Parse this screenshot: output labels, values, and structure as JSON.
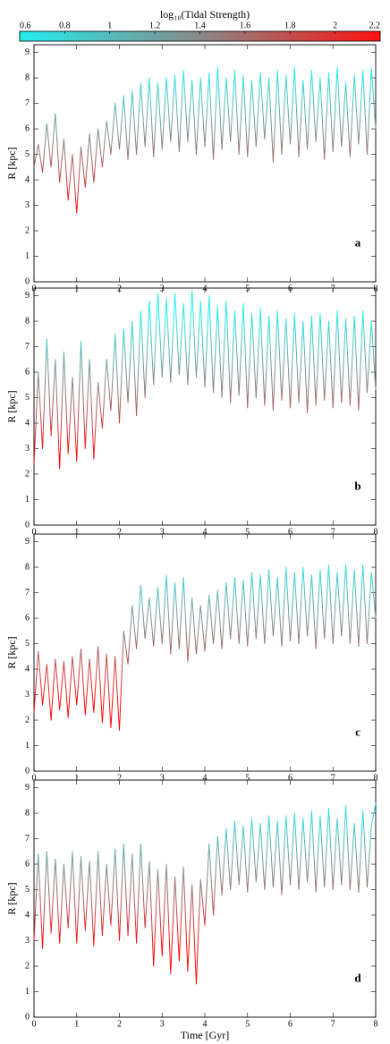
{
  "colorbar": {
    "label": "log₁₀(Tidal Strength)",
    "lim": [
      0.6,
      2.2
    ],
    "ticks": [
      0.6,
      0.8,
      1,
      1.2,
      1.4,
      1.6,
      1.8,
      2,
      2.2
    ],
    "colors": [
      "#22eeee",
      "#888888",
      "#ff1111"
    ]
  },
  "chart_data": [
    {
      "type": "line",
      "annotation": "a",
      "ylabel": "R [kpc]",
      "ylim": [
        0,
        9.3
      ],
      "yticks": [
        0,
        1,
        2,
        3,
        4,
        5,
        6,
        7,
        8,
        9
      ],
      "xlim": [
        0,
        8
      ],
      "xticks": [
        0,
        1,
        2,
        3,
        4,
        5,
        6,
        7,
        8
      ],
      "x": [
        0,
        0.1,
        0.2,
        0.3,
        0.4,
        0.5,
        0.6,
        0.7,
        0.8,
        0.9,
        1,
        1.1,
        1.2,
        1.3,
        1.4,
        1.5,
        1.6,
        1.7,
        1.8,
        1.9,
        2,
        2.1,
        2.2,
        2.3,
        2.4,
        2.5,
        2.6,
        2.7,
        2.8,
        2.9,
        3,
        3.1,
        3.2,
        3.3,
        3.4,
        3.5,
        3.6,
        3.7,
        3.8,
        3.9,
        4,
        4.1,
        4.2,
        4.3,
        4.4,
        4.5,
        4.6,
        4.7,
        4.8,
        4.9,
        5,
        5.1,
        5.2,
        5.3,
        5.4,
        5.5,
        5.6,
        5.7,
        5.8,
        5.9,
        6,
        6.1,
        6.2,
        6.3,
        6.4,
        6.5,
        6.6,
        6.7,
        6.8,
        6.9,
        7,
        7.1,
        7.2,
        7.3,
        7.4,
        7.5,
        7.6,
        7.7,
        7.8,
        7.9,
        8
      ],
      "values": [
        4.5,
        5.4,
        4.3,
        6.2,
        4.5,
        6.6,
        3.9,
        5.6,
        3.2,
        5.0,
        2.7,
        5.3,
        3.7,
        5.8,
        3.9,
        6.0,
        4.5,
        6.3,
        5.0,
        7.0,
        5.2,
        7.3,
        4.8,
        7.5,
        5.0,
        7.8,
        5.3,
        8.0,
        4.9,
        7.8,
        5.2,
        8.0,
        5.5,
        8.1,
        5.1,
        8.3,
        5.5,
        7.9,
        5.0,
        8.0,
        5.3,
        8.2,
        4.8,
        8.4,
        5.2,
        8.0,
        5.5,
        8.3,
        5.0,
        8.1,
        4.9,
        7.9,
        5.3,
        8.2,
        5.6,
        8.0,
        4.7,
        8.3,
        5.0,
        8.1,
        5.4,
        8.4,
        4.9,
        7.9,
        5.2,
        8.3,
        5.5,
        8.0,
        4.8,
        8.2,
        5.1,
        8.4,
        5.3,
        7.8,
        4.9,
        8.1,
        5.4,
        8.3,
        5.0,
        8.4,
        6.0
      ]
    },
    {
      "type": "line",
      "annotation": "b",
      "ylabel": "R [kpc]",
      "ylim": [
        0,
        9.3
      ],
      "yticks": [
        0,
        1,
        2,
        3,
        4,
        5,
        6,
        7,
        8,
        9
      ],
      "xlim": [
        0,
        8
      ],
      "xticks": [
        0,
        1,
        2,
        3,
        4,
        5,
        6,
        7,
        8
      ],
      "x": [
        0,
        0.1,
        0.2,
        0.3,
        0.4,
        0.5,
        0.6,
        0.7,
        0.8,
        0.9,
        1,
        1.1,
        1.2,
        1.3,
        1.4,
        1.5,
        1.6,
        1.7,
        1.8,
        1.9,
        2,
        2.1,
        2.2,
        2.3,
        2.4,
        2.5,
        2.6,
        2.7,
        2.8,
        2.9,
        3,
        3.1,
        3.2,
        3.3,
        3.4,
        3.5,
        3.6,
        3.7,
        3.8,
        3.9,
        4,
        4.1,
        4.2,
        4.3,
        4.4,
        4.5,
        4.6,
        4.7,
        4.8,
        4.9,
        5,
        5.1,
        5.2,
        5.3,
        5.4,
        5.5,
        5.6,
        5.7,
        5.8,
        5.9,
        6,
        6.1,
        6.2,
        6.3,
        6.4,
        6.5,
        6.6,
        6.7,
        6.8,
        6.9,
        7,
        7.1,
        7.2,
        7.3,
        7.4,
        7.5,
        7.6,
        7.7,
        7.8,
        7.9,
        8
      ],
      "values": [
        2.4,
        6.0,
        3.0,
        7.3,
        3.5,
        6.5,
        2.2,
        6.8,
        2.8,
        5.8,
        2.5,
        7.2,
        3.0,
        6.5,
        2.6,
        5.6,
        3.8,
        6.5,
        4.5,
        7.5,
        4.0,
        7.7,
        4.8,
        8.0,
        4.3,
        8.4,
        5.0,
        8.8,
        5.5,
        9.1,
        5.8,
        8.9,
        5.6,
        9.1,
        5.9,
        8.7,
        5.5,
        9.2,
        5.8,
        8.8,
        5.4,
        9.0,
        5.2,
        8.6,
        5.0,
        8.8,
        4.8,
        8.4,
        5.1,
        8.7,
        4.6,
        8.3,
        5.0,
        8.5,
        4.7,
        8.2,
        4.5,
        8.4,
        4.9,
        8.1,
        4.6,
        8.3,
        4.8,
        8.0,
        4.4,
        8.2,
        4.7,
        8.3,
        4.9,
        8.0,
        4.6,
        8.4,
        4.8,
        8.1,
        4.7,
        8.2,
        4.5,
        8.4,
        5.2,
        8.0,
        5.3
      ]
    },
    {
      "type": "line",
      "annotation": "c",
      "ylabel": "R [kpc]",
      "ylim": [
        0,
        9.3
      ],
      "yticks": [
        0,
        1,
        2,
        3,
        4,
        5,
        6,
        7,
        8,
        9
      ],
      "xlim": [
        0,
        8
      ],
      "xticks": [
        0,
        1,
        2,
        3,
        4,
        5,
        6,
        7,
        8
      ],
      "x": [
        0,
        0.1,
        0.2,
        0.3,
        0.4,
        0.5,
        0.6,
        0.7,
        0.8,
        0.9,
        1,
        1.1,
        1.2,
        1.3,
        1.4,
        1.5,
        1.6,
        1.7,
        1.8,
        1.9,
        2,
        2.1,
        2.2,
        2.3,
        2.4,
        2.5,
        2.6,
        2.7,
        2.8,
        2.9,
        3,
        3.1,
        3.2,
        3.3,
        3.4,
        3.5,
        3.6,
        3.7,
        3.8,
        3.9,
        4,
        4.1,
        4.2,
        4.3,
        4.4,
        4.5,
        4.6,
        4.7,
        4.8,
        4.9,
        5,
        5.1,
        5.2,
        5.3,
        5.4,
        5.5,
        5.6,
        5.7,
        5.8,
        5.9,
        6,
        6.1,
        6.2,
        6.3,
        6.4,
        6.5,
        6.6,
        6.7,
        6.8,
        6.9,
        7,
        7.1,
        7.2,
        7.3,
        7.4,
        7.5,
        7.6,
        7.7,
        7.8,
        7.9,
        8
      ],
      "values": [
        2.3,
        4.7,
        2.6,
        4.2,
        2.0,
        4.4,
        2.4,
        4.3,
        2.1,
        4.5,
        2.6,
        4.8,
        2.2,
        4.4,
        2.3,
        4.9,
        1.9,
        4.6,
        1.7,
        4.5,
        1.6,
        5.5,
        4.2,
        6.5,
        4.8,
        7.3,
        5.2,
        6.8,
        4.9,
        7.2,
        5.0,
        7.7,
        4.6,
        7.4,
        4.8,
        7.6,
        4.3,
        6.8,
        4.6,
        6.5,
        4.7,
        6.9,
        5.0,
        7.1,
        4.8,
        7.4,
        5.2,
        7.6,
        5.0,
        7.5,
        4.9,
        7.8,
        5.2,
        7.7,
        5.0,
        7.9,
        5.3,
        7.6,
        4.9,
        8.0,
        5.1,
        7.8,
        5.0,
        8.0,
        5.3,
        7.7,
        4.8,
        7.9,
        5.2,
        8.1,
        5.0,
        7.8,
        5.3,
        8.1,
        5.0,
        7.9,
        4.9,
        8.1,
        5.0,
        7.8,
        6.0
      ]
    },
    {
      "type": "line",
      "annotation": "d",
      "ylabel": "R [kpc]",
      "xlabel": "Time [Gyr]",
      "ylim": [
        0,
        9.3
      ],
      "yticks": [
        0,
        1,
        2,
        3,
        4,
        5,
        6,
        7,
        8,
        9
      ],
      "xlim": [
        0,
        8
      ],
      "xticks": [
        0,
        1,
        2,
        3,
        4,
        5,
        6,
        7,
        8
      ],
      "x": [
        0,
        0.1,
        0.2,
        0.3,
        0.4,
        0.5,
        0.6,
        0.7,
        0.8,
        0.9,
        1,
        1.1,
        1.2,
        1.3,
        1.4,
        1.5,
        1.6,
        1.7,
        1.8,
        1.9,
        2,
        2.1,
        2.2,
        2.3,
        2.4,
        2.5,
        2.6,
        2.7,
        2.8,
        2.9,
        3,
        3.1,
        3.2,
        3.3,
        3.4,
        3.5,
        3.6,
        3.7,
        3.8,
        3.9,
        4,
        4.1,
        4.2,
        4.3,
        4.4,
        4.5,
        4.6,
        4.7,
        4.8,
        4.9,
        5,
        5.1,
        5.2,
        5.3,
        5.4,
        5.5,
        5.6,
        5.7,
        5.8,
        5.9,
        6,
        6.1,
        6.2,
        6.3,
        6.4,
        6.5,
        6.6,
        6.7,
        6.8,
        6.9,
        7,
        7.1,
        7.2,
        7.3,
        7.4,
        7.5,
        7.6,
        7.7,
        7.8,
        7.9,
        8
      ],
      "values": [
        3.0,
        6.4,
        2.7,
        6.5,
        3.3,
        6.2,
        2.9,
        6.0,
        3.5,
        6.5,
        2.9,
        6.3,
        3.4,
        6.1,
        2.8,
        6.5,
        3.2,
        6.0,
        3.6,
        6.6,
        3.0,
        6.8,
        3.2,
        6.4,
        2.9,
        6.8,
        3.5,
        6.1,
        2.0,
        5.8,
        2.4,
        6.0,
        1.7,
        5.5,
        2.2,
        5.9,
        1.8,
        5.2,
        1.3,
        5.4,
        3.6,
        6.8,
        4.0,
        7.1,
        4.8,
        7.4,
        5.0,
        7.7,
        5.2,
        7.5,
        4.9,
        7.8,
        5.3,
        7.6,
        5.0,
        7.9,
        5.1,
        7.7,
        4.8,
        7.9,
        5.2,
        8.0,
        5.0,
        7.8,
        5.3,
        8.1,
        4.9,
        7.9,
        5.1,
        8.2,
        5.0,
        7.8,
        5.2,
        8.3,
        5.0,
        7.6,
        4.9,
        8.1,
        5.1,
        7.5,
        8.4
      ]
    }
  ]
}
